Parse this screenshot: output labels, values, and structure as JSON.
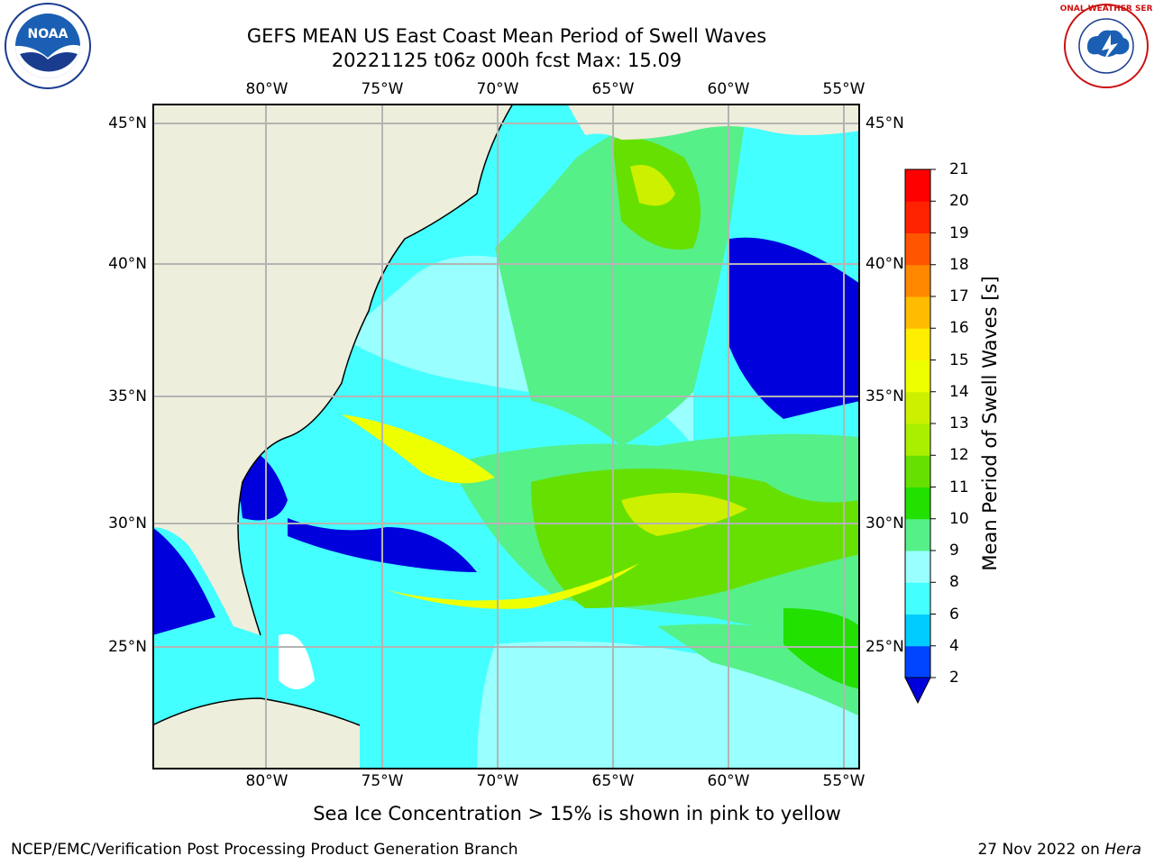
{
  "title_line1": "GEFS MEAN US East Coast Mean Period of Swell Waves",
  "title_line2": "20221125 t06z 000h fcst   Max: 15.09",
  "lon_ticks": [
    "80°W",
    "75°W",
    "70°W",
    "65°W",
    "60°W",
    "55°W"
  ],
  "lat_ticks": [
    "45°N",
    "40°N",
    "35°N",
    "30°N",
    "25°N"
  ],
  "colorbar": {
    "title": "Mean Period of Swell Waves [s]",
    "levels": [
      "2",
      "4",
      "6",
      "8",
      "9",
      "10",
      "11",
      "12",
      "13",
      "14",
      "15",
      "16",
      "17",
      "18",
      "19",
      "20",
      "21"
    ],
    "colors": [
      "#0044ff",
      "#00ccff",
      "#44ffff",
      "#99ffff",
      "#55f088",
      "#22e000",
      "#66e000",
      "#aaee00",
      "#ccf000",
      "#eeff00",
      "#ffee00",
      "#ffbb00",
      "#ff8800",
      "#ff5500",
      "#ff2200",
      "#ff0000"
    ],
    "under_color": "#0000dd"
  },
  "land_color": "#eeeedc",
  "note": "Sea Ice Concentration > 15% is shown in pink to yellow",
  "footer_left": "NCEP/EMC/Verification Post Processing Product Generation Branch",
  "footer_right_date": "27 Nov 2022 on",
  "footer_right_machine": "Hera",
  "noaa_logo_text": "NOAA",
  "nws_logo_text": "NATIONAL WEATHER SERVICE"
}
